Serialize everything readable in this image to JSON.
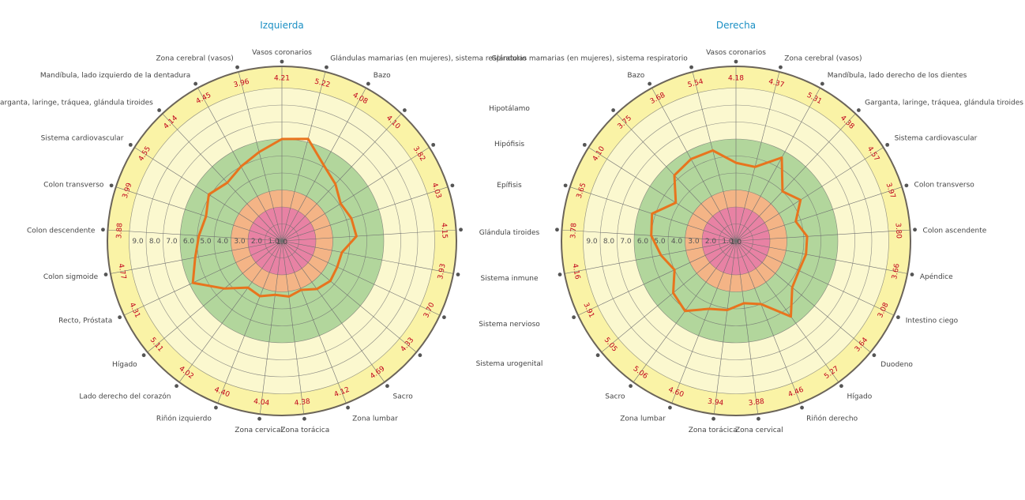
{
  "chart_data": [
    {
      "type": "radar",
      "title": "Izquierda",
      "rings": [
        "1.0",
        "2.0",
        "3.0",
        "4.0",
        "5.0",
        "6.0",
        "7.0",
        "8.0",
        "9.0"
      ],
      "zones": {
        "red": "#e882a4",
        "orange": "#f4b486",
        "green": "#b2d69c",
        "lightyellow": "#fbf8cf",
        "yellow": "#faf3a6",
        "line": "#e8741e"
      },
      "axes": [
        {
          "label": "Vasos coronarios",
          "value": 6.0,
          "printed": "4.21"
        },
        {
          "label": "Glándulas mamarias (en mujeres), sistema respiratorio",
          "value": 6.2,
          "printed": "5.22"
        },
        {
          "label": "Bazo",
          "value": 5.1,
          "printed": "4.08"
        },
        {
          "label": "",
          "value": 4.6,
          "printed": "4.10"
        },
        {
          "label": "",
          "value": 4.1,
          "printed": "3.82"
        },
        {
          "label": "",
          "value": 4.3,
          "printed": "4.03"
        },
        {
          "label": "",
          "value": 4.4,
          "printed": "4.15"
        },
        {
          "label": "",
          "value": 3.6,
          "printed": "3.93"
        },
        {
          "label": "",
          "value": 3.6,
          "printed": "3.70"
        },
        {
          "label": "",
          "value": 3.7,
          "printed": "4.33"
        },
        {
          "label": "Sacro",
          "value": 3.5,
          "printed": "4.69"
        },
        {
          "label": "Zona lumbar",
          "value": 3.1,
          "printed": "4.12"
        },
        {
          "label": "Zona torácica",
          "value": 3.3,
          "printed": "4.38"
        },
        {
          "label": "Zona cervical",
          "value": 3.2,
          "printed": "4.04"
        },
        {
          "label": "Riñón izquierdo",
          "value": 3.5,
          "printed": "4.40"
        },
        {
          "label": "Lado derecho del corazón",
          "value": 3.4,
          "printed": "4.02"
        },
        {
          "label": "Hígado",
          "value": 4.4,
          "printed": "5.11"
        },
        {
          "label": "Recto, Próstata",
          "value": 5.8,
          "printed": "4.31"
        },
        {
          "label": "Colon sigmoide",
          "value": 5.2,
          "printed": "4.77"
        },
        {
          "label": "Colon descendente",
          "value": 4.9,
          "printed": "3.88"
        },
        {
          "label": "Colon transverso",
          "value": 4.7,
          "printed": "3.99"
        },
        {
          "label": "Sistema cardiovascular",
          "value": 5.1,
          "printed": "4.55"
        },
        {
          "label": "Garganta, laringe, tráquea, glándula tiroides",
          "value": 4.7,
          "printed": "4.14"
        },
        {
          "label": "Mandíbula, lado izquierdo de la dentadura",
          "value": 5.0,
          "printed": "4.45"
        },
        {
          "label": "Zona cerebral (vasos)",
          "value": 5.4,
          "printed": "3.96"
        }
      ]
    },
    {
      "type": "radar",
      "title": "Derecha",
      "rings": [
        "1.0",
        "2.0",
        "3.0",
        "4.0",
        "5.0",
        "6.0",
        "7.0",
        "8.0",
        "9.0"
      ],
      "zones": {
        "red": "#e882a4",
        "orange": "#f4b486",
        "green": "#b2d69c",
        "lightyellow": "#fbf8cf",
        "yellow": "#faf3a6",
        "line": "#e8741e"
      },
      "axes": [
        {
          "label": "Vasos coronarios",
          "value": 4.6,
          "printed": "4.18"
        },
        {
          "label": "Zona cerebral (vasos)",
          "value": 4.5,
          "printed": "4.37"
        },
        {
          "label": "Mandíbula, lado derecho de los dientes",
          "value": 5.6,
          "printed": "5.31"
        },
        {
          "label": "Garganta, laringe, tráquea, glándula tiroides",
          "value": 4.0,
          "printed": "4.38"
        },
        {
          "label": "Sistema cardiovascular",
          "value": 4.5,
          "printed": "4.57"
        },
        {
          "label": "Colon transverso",
          "value": 3.7,
          "printed": "3.97"
        },
        {
          "label": "Colon ascendente",
          "value": 4.2,
          "printed": "3.80"
        },
        {
          "label": "Apéndice",
          "value": 4.2,
          "printed": "3.66"
        },
        {
          "label": "Intestino ciego",
          "value": 4.1,
          "printed": "3.08"
        },
        {
          "label": "Duodeno",
          "value": 4.3,
          "printed": "3.64"
        },
        {
          "label": "Hígado",
          "value": 5.5,
          "printed": "5.27"
        },
        {
          "label": "Riñón derecho",
          "value": 4.0,
          "printed": "4.46"
        },
        {
          "label": "Zona cervical",
          "value": 3.7,
          "printed": "3.88"
        },
        {
          "label": "Zona torácica",
          "value": 4.1,
          "printed": "3.94"
        },
        {
          "label": "Zona lumbar",
          "value": 4.3,
          "printed": "4.60"
        },
        {
          "label": "Sacro",
          "value": 5.1,
          "printed": "5.06"
        },
        {
          "label": "",
          "value": 4.8,
          "printed": "5.05"
        },
        {
          "label": "",
          "value": 4.0,
          "printed": "3.91"
        },
        {
          "label": "",
          "value": 4.5,
          "printed": "4.16"
        },
        {
          "label": "",
          "value": 5.0,
          "printed": "3.78"
        },
        {
          "label": "",
          "value": 5.2,
          "printed": "3.65"
        },
        {
          "label": "",
          "value": 4.2,
          "printed": "4.10"
        },
        {
          "label": "",
          "value": 5.3,
          "printed": "3.75"
        },
        {
          "label": "Bazo",
          "value": 5.5,
          "printed": "3.68"
        },
        {
          "label": "Glándulas mamarias (en mujeres), sistema respiratorio",
          "value": 5.5,
          "printed": "5.54"
        }
      ]
    }
  ],
  "center_labels": [
    "Hipotálamo",
    "Hipófisis",
    "Epífisis",
    "Glándula tiroides",
    "Sistema inmune",
    "Sistema nervioso",
    "Sistema urogenital"
  ]
}
